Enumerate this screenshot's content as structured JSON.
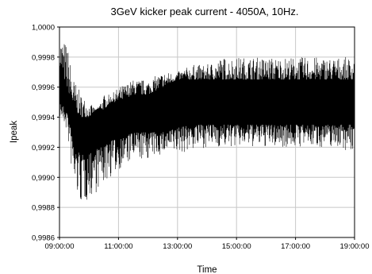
{
  "chart_data": {
    "type": "line",
    "title": "3GeV kicker peak current - 4050A, 10Hz.",
    "xlabel": "Time",
    "ylabel": "Ipeak",
    "x_ticks": [
      "09:00:00",
      "11:00:00",
      "13:00:00",
      "15:00:00",
      "17:00:00",
      "19:00:00"
    ],
    "y_ticks": [
      "0,9986",
      "0,9988",
      "0,9990",
      "0,9992",
      "0,9994",
      "0,9996",
      "0,9998",
      "1,0000"
    ],
    "xlim": [
      "09:00",
      "19:00"
    ],
    "ylim": [
      0.9986,
      1.0
    ],
    "grid": true,
    "color": "#000000",
    "series": [
      {
        "x": [
          "09:00",
          "09:15",
          "09:30",
          "09:45",
          "10:00",
          "10:15",
          "10:30",
          "10:45",
          "11:00",
          "11:30",
          "12:00",
          "12:30",
          "13:00",
          "13:30",
          "14:00",
          "14:30",
          "15:00",
          "15:30",
          "16:00",
          "16:30",
          "17:00",
          "17:30",
          "18:00",
          "18:30",
          "19:00"
        ],
        "upper": [
          0.99995,
          0.9999,
          0.99965,
          0.99955,
          0.9995,
          0.99945,
          0.99955,
          0.99955,
          0.9996,
          0.99965,
          0.99965,
          0.9997,
          0.9997,
          0.99975,
          0.99975,
          0.9998,
          0.9998,
          0.9998,
          0.9998,
          0.9998,
          0.9998,
          0.9998,
          0.9998,
          0.9998,
          0.9998
        ],
        "lower": [
          0.9994,
          0.9993,
          0.9989,
          0.9988,
          0.99885,
          0.9989,
          0.99895,
          0.999,
          0.99905,
          0.9991,
          0.99912,
          0.99915,
          0.99915,
          0.99918,
          0.9992,
          0.9992,
          0.9992,
          0.9992,
          0.9992,
          0.9992,
          0.9992,
          0.9992,
          0.9992,
          0.9992,
          0.99915
        ],
        "core_upper": [
          0.99975,
          0.9996,
          0.99945,
          0.9994,
          0.9994,
          0.99945,
          0.99945,
          0.9995,
          0.9995,
          0.99955,
          0.99955,
          0.9996,
          0.99965,
          0.99965,
          0.99965,
          0.99965,
          0.99965,
          0.99965,
          0.99965,
          0.99965,
          0.99965,
          0.99965,
          0.99965,
          0.99965,
          0.99965
        ],
        "core_lower": [
          0.9995,
          0.99945,
          0.9992,
          0.99915,
          0.99915,
          0.9992,
          0.9992,
          0.99925,
          0.99925,
          0.9993,
          0.9993,
          0.9993,
          0.99933,
          0.99935,
          0.99935,
          0.99935,
          0.99935,
          0.99935,
          0.99935,
          0.99935,
          0.99935,
          0.99935,
          0.99935,
          0.99935,
          0.99935
        ]
      }
    ]
  }
}
